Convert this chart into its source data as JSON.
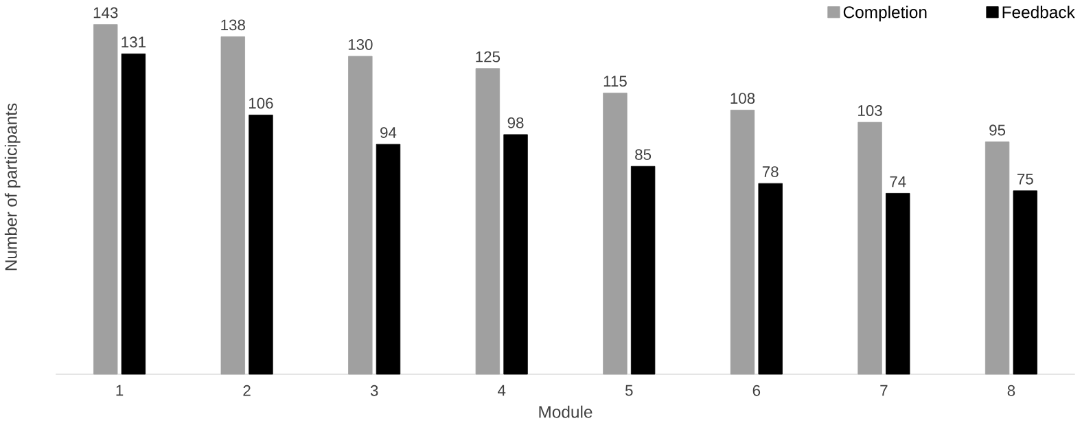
{
  "chart_data": {
    "type": "bar",
    "xlabel": "Module",
    "ylabel": "Number of participants",
    "categories": [
      "1",
      "2",
      "3",
      "4",
      "5",
      "6",
      "7",
      "8"
    ],
    "series": [
      {
        "name": "Completion",
        "color": "#a0a0a0",
        "values": [
          143,
          138,
          130,
          125,
          115,
          108,
          103,
          95
        ]
      },
      {
        "name": "Feedback",
        "color": "#000000",
        "values": [
          131,
          106,
          94,
          98,
          85,
          78,
          74,
          75
        ]
      }
    ],
    "data_labels": true,
    "legend": "top right"
  }
}
